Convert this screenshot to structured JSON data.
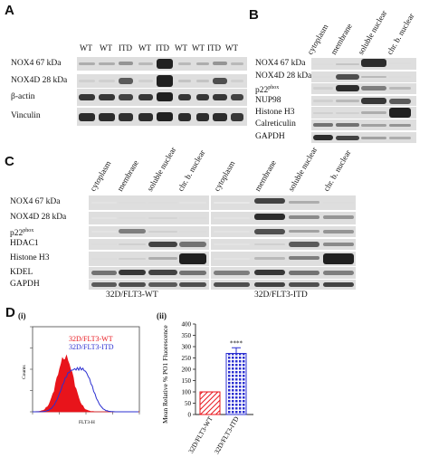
{
  "panels": {
    "A": {
      "letter": "A",
      "lanes": [
        "WT",
        "WT",
        "ITD",
        "WT",
        "ITD",
        "WT",
        "WT",
        "ITD",
        "WT"
      ],
      "rows": [
        {
          "label": "NOX4 67 kDa"
        },
        {
          "label": "NOX4D 28 kDa"
        },
        {
          "label": "β-actin"
        },
        {
          "label": "Vinculin"
        }
      ]
    },
    "B": {
      "letter": "B",
      "fractions": [
        "cytoplasm",
        "membrane",
        "soluble nuclear",
        "chr. b. nuclear"
      ],
      "rows": [
        {
          "label": "NOX4 67 kDa"
        },
        {
          "label": "NOX4D 28 kDa"
        },
        {
          "label": "p22",
          "sup": "phox"
        },
        {
          "label": "NUP98"
        },
        {
          "label": "Histone H3"
        },
        {
          "label": "Calreticulin"
        },
        {
          "label": "GAPDH"
        }
      ]
    },
    "C": {
      "letter": "C",
      "fractions": [
        "cytoplasm",
        "membrane",
        "soluble nuclear",
        "chr. b. nuclear",
        "cytoplasm",
        "membrane",
        "soluble nuclear",
        "chr. b. nuclear"
      ],
      "rows": [
        {
          "label": "NOX4 67 kDa"
        },
        {
          "label": "NOX4D 28 kDa"
        },
        {
          "label": "p22",
          "sup": "phox"
        },
        {
          "label": "HDAC1"
        },
        {
          "label": "Histone H3"
        },
        {
          "label": "KDEL"
        },
        {
          "label": "GAPDH"
        }
      ],
      "groups": [
        "32D/FLT3-WT",
        "32D/FLT3-ITD"
      ]
    },
    "D": {
      "letter": "D",
      "sub_i": "(i)",
      "sub_ii": "(ii)",
      "histogram": {
        "legend": [
          "32D/FLT3-WT",
          "32D/FLT3-ITD"
        ],
        "ylabel": "Counts",
        "xlabel": "FLT3-H",
        "colors": {
          "wt": "#e8141b",
          "itd": "#2b2fd1"
        }
      },
      "bar_chart": {
        "type": "bar",
        "categories": [
          "32D/FLT3-WT",
          "32D/FLT3-ITD"
        ],
        "values": [
          100,
          270
        ],
        "error": [
          0,
          25
        ],
        "ylabel": "Mean Relative % PO1 Fluorescence",
        "yticks": [
          "0",
          "50",
          "100",
          "150",
          "200",
          "250",
          "300",
          "350",
          "400"
        ],
        "ylim": [
          0,
          400
        ],
        "significance": "****"
      }
    }
  }
}
